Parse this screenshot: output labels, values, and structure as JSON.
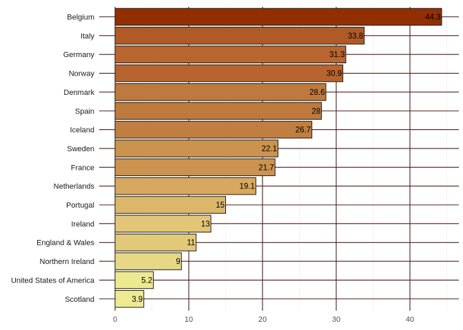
{
  "chart_data": {
    "type": "bar",
    "orientation": "horizontal",
    "categories": [
      "Belgium",
      "Italy",
      "Germany",
      "Norway",
      "Denmark",
      "Spain",
      "Iceland",
      "Sweden",
      "France",
      "Netherlands",
      "Portugal",
      "Ireland",
      "England & Wales",
      "Northern Ireland",
      "United States of America",
      "Scotland"
    ],
    "values": [
      44.3,
      33.8,
      31.3,
      30.9,
      28.6,
      28,
      26.7,
      22.1,
      21.7,
      19.1,
      15,
      13,
      11,
      9,
      5.2,
      3.9
    ],
    "data_labels": [
      "44.3",
      "33.8",
      "31.3",
      "30.9",
      "28.6",
      "28",
      "26.7",
      "22.1",
      "21.7",
      "19.1",
      "15",
      "13",
      "11",
      "9",
      "5.2",
      "3.9"
    ],
    "x_ticks": [
      0,
      10,
      20,
      30,
      40
    ],
    "xlim": [
      0,
      46.5
    ],
    "title": "",
    "xlabel": "",
    "ylabel": "",
    "grid": true,
    "legend": "none",
    "colors": {
      "grid_major": "#4a1a1a",
      "grid_minor": "#ebebeb",
      "bar_outline": "#1a1a1a",
      "bar_fills": [
        "#922f02",
        "#b05a27",
        "#b8652f",
        "#b8642f",
        "#be7a3c",
        "#be7a3d",
        "#c07e40",
        "#cc934e",
        "#cc934e",
        "#d8a85e",
        "#dcb76a",
        "#e2c577",
        "#e2c979",
        "#e8d785",
        "#ede991",
        "#edea92"
      ]
    }
  }
}
